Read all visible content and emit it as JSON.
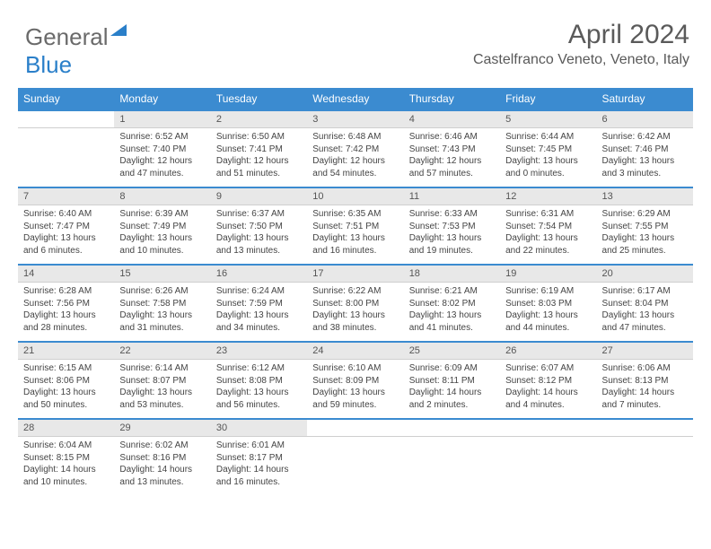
{
  "brand": {
    "part1": "General",
    "part2": "Blue"
  },
  "header": {
    "title": "April 2024",
    "location": "Castelfranco Veneto, Veneto, Italy"
  },
  "colors": {
    "header_bg": "#3b8bd0",
    "numrow_bg": "#e8e8e8",
    "accent": "#2a7fc9"
  },
  "days": [
    "Sunday",
    "Monday",
    "Tuesday",
    "Wednesday",
    "Thursday",
    "Friday",
    "Saturday"
  ],
  "weeks": [
    [
      null,
      {
        "n": "1",
        "sr": "Sunrise: 6:52 AM",
        "ss": "Sunset: 7:40 PM",
        "dl": "Daylight: 12 hours and 47 minutes."
      },
      {
        "n": "2",
        "sr": "Sunrise: 6:50 AM",
        "ss": "Sunset: 7:41 PM",
        "dl": "Daylight: 12 hours and 51 minutes."
      },
      {
        "n": "3",
        "sr": "Sunrise: 6:48 AM",
        "ss": "Sunset: 7:42 PM",
        "dl": "Daylight: 12 hours and 54 minutes."
      },
      {
        "n": "4",
        "sr": "Sunrise: 6:46 AM",
        "ss": "Sunset: 7:43 PM",
        "dl": "Daylight: 12 hours and 57 minutes."
      },
      {
        "n": "5",
        "sr": "Sunrise: 6:44 AM",
        "ss": "Sunset: 7:45 PM",
        "dl": "Daylight: 13 hours and 0 minutes."
      },
      {
        "n": "6",
        "sr": "Sunrise: 6:42 AM",
        "ss": "Sunset: 7:46 PM",
        "dl": "Daylight: 13 hours and 3 minutes."
      }
    ],
    [
      {
        "n": "7",
        "sr": "Sunrise: 6:40 AM",
        "ss": "Sunset: 7:47 PM",
        "dl": "Daylight: 13 hours and 6 minutes."
      },
      {
        "n": "8",
        "sr": "Sunrise: 6:39 AM",
        "ss": "Sunset: 7:49 PM",
        "dl": "Daylight: 13 hours and 10 minutes."
      },
      {
        "n": "9",
        "sr": "Sunrise: 6:37 AM",
        "ss": "Sunset: 7:50 PM",
        "dl": "Daylight: 13 hours and 13 minutes."
      },
      {
        "n": "10",
        "sr": "Sunrise: 6:35 AM",
        "ss": "Sunset: 7:51 PM",
        "dl": "Daylight: 13 hours and 16 minutes."
      },
      {
        "n": "11",
        "sr": "Sunrise: 6:33 AM",
        "ss": "Sunset: 7:53 PM",
        "dl": "Daylight: 13 hours and 19 minutes."
      },
      {
        "n": "12",
        "sr": "Sunrise: 6:31 AM",
        "ss": "Sunset: 7:54 PM",
        "dl": "Daylight: 13 hours and 22 minutes."
      },
      {
        "n": "13",
        "sr": "Sunrise: 6:29 AM",
        "ss": "Sunset: 7:55 PM",
        "dl": "Daylight: 13 hours and 25 minutes."
      }
    ],
    [
      {
        "n": "14",
        "sr": "Sunrise: 6:28 AM",
        "ss": "Sunset: 7:56 PM",
        "dl": "Daylight: 13 hours and 28 minutes."
      },
      {
        "n": "15",
        "sr": "Sunrise: 6:26 AM",
        "ss": "Sunset: 7:58 PM",
        "dl": "Daylight: 13 hours and 31 minutes."
      },
      {
        "n": "16",
        "sr": "Sunrise: 6:24 AM",
        "ss": "Sunset: 7:59 PM",
        "dl": "Daylight: 13 hours and 34 minutes."
      },
      {
        "n": "17",
        "sr": "Sunrise: 6:22 AM",
        "ss": "Sunset: 8:00 PM",
        "dl": "Daylight: 13 hours and 38 minutes."
      },
      {
        "n": "18",
        "sr": "Sunrise: 6:21 AM",
        "ss": "Sunset: 8:02 PM",
        "dl": "Daylight: 13 hours and 41 minutes."
      },
      {
        "n": "19",
        "sr": "Sunrise: 6:19 AM",
        "ss": "Sunset: 8:03 PM",
        "dl": "Daylight: 13 hours and 44 minutes."
      },
      {
        "n": "20",
        "sr": "Sunrise: 6:17 AM",
        "ss": "Sunset: 8:04 PM",
        "dl": "Daylight: 13 hours and 47 minutes."
      }
    ],
    [
      {
        "n": "21",
        "sr": "Sunrise: 6:15 AM",
        "ss": "Sunset: 8:06 PM",
        "dl": "Daylight: 13 hours and 50 minutes."
      },
      {
        "n": "22",
        "sr": "Sunrise: 6:14 AM",
        "ss": "Sunset: 8:07 PM",
        "dl": "Daylight: 13 hours and 53 minutes."
      },
      {
        "n": "23",
        "sr": "Sunrise: 6:12 AM",
        "ss": "Sunset: 8:08 PM",
        "dl": "Daylight: 13 hours and 56 minutes."
      },
      {
        "n": "24",
        "sr": "Sunrise: 6:10 AM",
        "ss": "Sunset: 8:09 PM",
        "dl": "Daylight: 13 hours and 59 minutes."
      },
      {
        "n": "25",
        "sr": "Sunrise: 6:09 AM",
        "ss": "Sunset: 8:11 PM",
        "dl": "Daylight: 14 hours and 2 minutes."
      },
      {
        "n": "26",
        "sr": "Sunrise: 6:07 AM",
        "ss": "Sunset: 8:12 PM",
        "dl": "Daylight: 14 hours and 4 minutes."
      },
      {
        "n": "27",
        "sr": "Sunrise: 6:06 AM",
        "ss": "Sunset: 8:13 PM",
        "dl": "Daylight: 14 hours and 7 minutes."
      }
    ],
    [
      {
        "n": "28",
        "sr": "Sunrise: 6:04 AM",
        "ss": "Sunset: 8:15 PM",
        "dl": "Daylight: 14 hours and 10 minutes."
      },
      {
        "n": "29",
        "sr": "Sunrise: 6:02 AM",
        "ss": "Sunset: 8:16 PM",
        "dl": "Daylight: 14 hours and 13 minutes."
      },
      {
        "n": "30",
        "sr": "Sunrise: 6:01 AM",
        "ss": "Sunset: 8:17 PM",
        "dl": "Daylight: 14 hours and 16 minutes."
      },
      null,
      null,
      null,
      null
    ]
  ]
}
